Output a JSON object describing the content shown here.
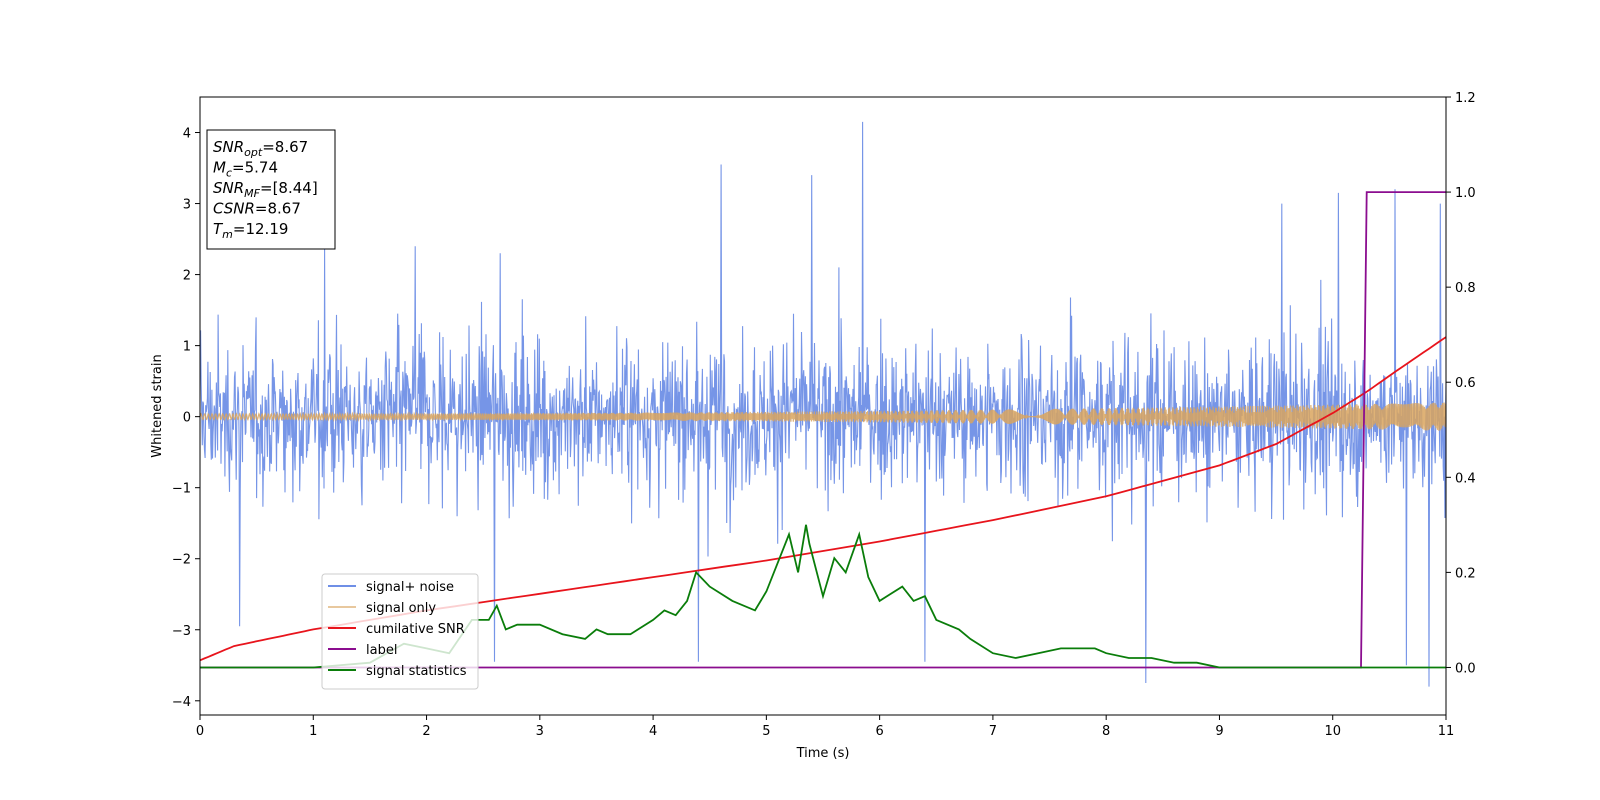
{
  "chart_data": {
    "type": "line",
    "xlabel": "Time (s)",
    "ylabel": "Whitened strain",
    "xlim": [
      0,
      11
    ],
    "ylim": [
      -4.2,
      4.5
    ],
    "y2lim": [
      -0.1,
      1.2
    ],
    "xticks": [
      "0",
      "1",
      "2",
      "3",
      "4",
      "5",
      "6",
      "7",
      "8",
      "9",
      "10",
      "11"
    ],
    "yticks": [
      "−4",
      "−3",
      "−2",
      "−1",
      "0",
      "1",
      "2",
      "3",
      "4"
    ],
    "y2ticks": [
      "0.0",
      "0.2",
      "0.4",
      "0.6",
      "0.8",
      "1.0",
      "1.2"
    ],
    "grid": false,
    "legend_placement": "lower-left",
    "info_box": [
      {
        "name": "SNR",
        "sub": "opt",
        "value": "=8.67"
      },
      {
        "name": "M",
        "sub": "c",
        "value": "=5.74"
      },
      {
        "name": "SNR",
        "sub": "MF",
        "value": "=[8.44]"
      },
      {
        "name": "CSNR",
        "sub": "",
        "value": "=8.67"
      },
      {
        "name": "T",
        "sub": "m",
        "value": "=12.19"
      }
    ],
    "series": [
      {
        "name": "signal+ noise",
        "color": "#6f8fe6",
        "axis": "left",
        "kind": "noise",
        "sigma": 0.95,
        "peaks": [
          [
            1.1,
            2.4
          ],
          [
            1.9,
            2.4
          ],
          [
            2.65,
            2.3
          ],
          [
            4.6,
            3.55
          ],
          [
            5.4,
            3.4
          ],
          [
            5.85,
            4.15
          ],
          [
            9.55,
            3.0
          ],
          [
            10.05,
            3.15
          ],
          [
            10.55,
            3.2
          ],
          [
            10.95,
            3.0
          ],
          [
            4.4,
            -3.45
          ],
          [
            6.4,
            -3.45
          ],
          [
            8.35,
            -3.75
          ],
          [
            10.85,
            -3.8
          ],
          [
            10.65,
            -3.5
          ],
          [
            2.6,
            -3.45
          ],
          [
            0.35,
            -2.95
          ]
        ]
      },
      {
        "name": "signal only",
        "color": "#d9a45e",
        "axis": "left",
        "kind": "chirp",
        "amp_start": 0.04,
        "amp_end": 0.2
      },
      {
        "name": "cumilative SNR",
        "color": "#e8141c",
        "axis": "right",
        "x": [
          0,
          0.3,
          0.7,
          1.0,
          2.0,
          3.0,
          4.0,
          5.0,
          6.0,
          7.0,
          8.0,
          9.0,
          9.5,
          10.0,
          10.3,
          10.6,
          11.0
        ],
        "y": [
          0.015,
          0.045,
          0.065,
          0.08,
          0.12,
          0.155,
          0.19,
          0.225,
          0.265,
          0.31,
          0.36,
          0.425,
          0.47,
          0.535,
          0.58,
          0.63,
          0.695
        ]
      },
      {
        "name": "label",
        "color": "#8b0d8f",
        "axis": "right",
        "x": [
          0,
          10.25,
          10.3,
          11.0
        ],
        "y": [
          0,
          0,
          1.0,
          1.0
        ]
      },
      {
        "name": "signal statistics",
        "color": "#0a7d0a",
        "axis": "right",
        "x": [
          0,
          0.5,
          1.0,
          1.5,
          1.8,
          2.0,
          2.2,
          2.4,
          2.55,
          2.62,
          2.7,
          2.8,
          3.0,
          3.2,
          3.4,
          3.5,
          3.6,
          3.8,
          4.0,
          4.1,
          4.2,
          4.3,
          4.38,
          4.5,
          4.7,
          4.9,
          5.0,
          5.2,
          5.28,
          5.35,
          5.38,
          5.5,
          5.6,
          5.7,
          5.82,
          5.9,
          6.0,
          6.2,
          6.3,
          6.4,
          6.5,
          6.7,
          6.8,
          7.0,
          7.2,
          7.4,
          7.6,
          7.8,
          7.9,
          8.0,
          8.2,
          8.4,
          8.6,
          8.8,
          9.0,
          9.5,
          10.0,
          10.5,
          11.0
        ],
        "y": [
          0.0,
          0.0,
          0.0,
          0.01,
          0.05,
          0.04,
          0.03,
          0.1,
          0.1,
          0.13,
          0.08,
          0.09,
          0.09,
          0.07,
          0.06,
          0.08,
          0.07,
          0.07,
          0.1,
          0.12,
          0.11,
          0.14,
          0.2,
          0.17,
          0.14,
          0.12,
          0.16,
          0.28,
          0.2,
          0.3,
          0.26,
          0.15,
          0.23,
          0.2,
          0.28,
          0.19,
          0.14,
          0.17,
          0.14,
          0.15,
          0.1,
          0.08,
          0.06,
          0.03,
          0.02,
          0.03,
          0.04,
          0.04,
          0.04,
          0.03,
          0.02,
          0.02,
          0.01,
          0.01,
          0.0,
          0.0,
          0.0,
          0.0,
          0.0
        ]
      }
    ]
  }
}
